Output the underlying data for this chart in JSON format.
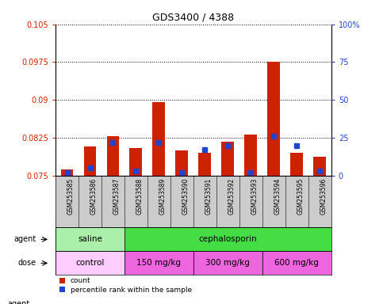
{
  "title": "GDS3400 / 4388",
  "samples": [
    "GSM253585",
    "GSM253586",
    "GSM253587",
    "GSM253588",
    "GSM253589",
    "GSM253590",
    "GSM253591",
    "GSM253592",
    "GSM253593",
    "GSM253594",
    "GSM253595",
    "GSM253596"
  ],
  "red_values": [
    0.0762,
    0.0808,
    0.0828,
    0.0805,
    0.0895,
    0.08,
    0.0796,
    0.0818,
    0.0832,
    0.0975,
    0.0796,
    0.0787
  ],
  "blue_values": [
    2,
    5,
    22,
    3,
    22,
    2,
    17,
    20,
    2,
    26,
    20,
    3
  ],
  "ylim_left": [
    0.075,
    0.105
  ],
  "ylim_right": [
    0,
    100
  ],
  "yticks_left": [
    0.075,
    0.0825,
    0.09,
    0.0975,
    0.105
  ],
  "yticks_right": [
    0,
    25,
    50,
    75,
    100
  ],
  "ytick_labels_left": [
    "0.075",
    "0.0825",
    "0.09",
    "0.0975",
    "0.105"
  ],
  "ytick_labels_right": [
    "0",
    "25",
    "50",
    "75",
    "100%"
  ],
  "red_color": "#cc2200",
  "blue_color": "#2244cc",
  "agent_row": [
    {
      "label": "saline",
      "start": 0,
      "end": 3,
      "color": "#aaf0aa"
    },
    {
      "label": "cephalosporin",
      "start": 3,
      "end": 12,
      "color": "#44dd44"
    }
  ],
  "dose_row": [
    {
      "label": "control",
      "start": 0,
      "end": 3,
      "color": "#ffccff"
    },
    {
      "label": "150 mg/kg",
      "start": 3,
      "end": 6,
      "color": "#ee66dd"
    },
    {
      "label": "300 mg/kg",
      "start": 6,
      "end": 9,
      "color": "#ee66dd"
    },
    {
      "label": "600 mg/kg",
      "start": 9,
      "end": 12,
      "color": "#ee66dd"
    }
  ],
  "agent_label": "agent",
  "dose_label": "dose",
  "legend_count": "count",
  "legend_percentile": "percentile rank within the sample",
  "bar_width": 0.55,
  "tick_color_left": "#cc2200",
  "tick_color_right": "#2244cc",
  "sample_bg_color": "#cccccc",
  "chart_bg_color": "#ffffff"
}
